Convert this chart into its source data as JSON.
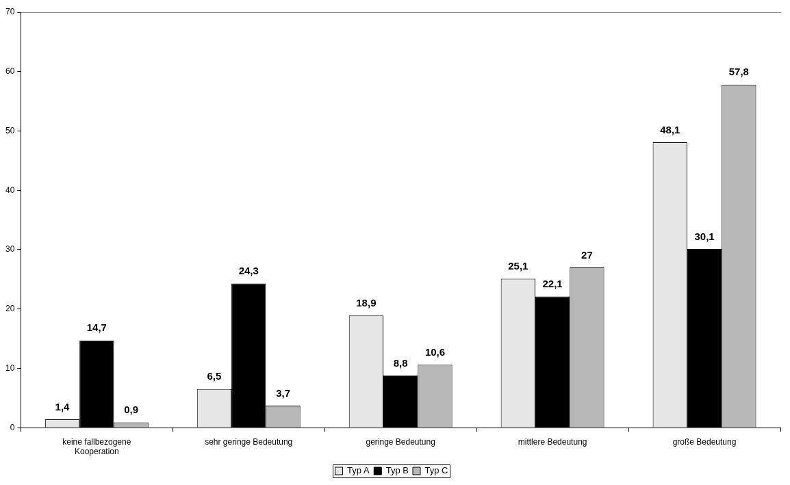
{
  "chart_data": {
    "type": "bar",
    "categories": [
      "keine fallbezogene Kooperation",
      "sehr geringe Bedeutung",
      "geringe Bedeutung",
      "mittlere Bedeutung",
      "große Bedeutung"
    ],
    "series": [
      {
        "name": "Typ A",
        "color": "#e6e6e6",
        "values": [
          1.4,
          6.5,
          18.9,
          25.1,
          48.1
        ],
        "value_labels": [
          "1,4",
          "6,5",
          "18,9",
          "25,1",
          "48,1"
        ]
      },
      {
        "name": "Typ B",
        "color": "#000000",
        "values": [
          14.7,
          24.3,
          8.8,
          22.1,
          30.1
        ],
        "value_labels": [
          "14,7",
          "24,3",
          "8,8",
          "22,1",
          "30,1"
        ]
      },
      {
        "name": "Typ C",
        "color": "#b8b8b8",
        "values": [
          0.9,
          3.7,
          10.6,
          27,
          57.8
        ],
        "value_labels": [
          "0,9",
          "3,7",
          "10,6",
          "27",
          "57,8"
        ]
      }
    ],
    "ylim": [
      0,
      70
    ],
    "yticks": [
      0,
      10,
      20,
      30,
      40,
      50,
      60,
      70
    ],
    "grid": false,
    "legend": "bottom"
  }
}
